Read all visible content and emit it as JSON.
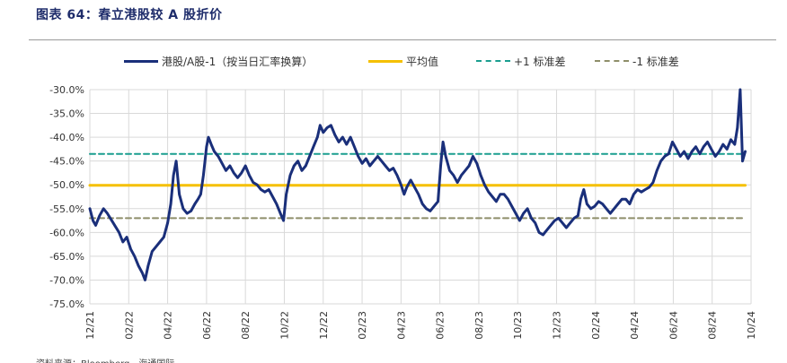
{
  "header": {
    "title": "图表 64：春立港股较 A 股折价"
  },
  "footer": {
    "source": "资料来源：Bloomberg，海通国际"
  },
  "chart_data": {
    "type": "line",
    "title": "",
    "xlabel": "",
    "ylabel": "",
    "ylim": [
      -75,
      -30
    ],
    "ytick_labels": [
      "-30.0%",
      "-35.0%",
      "-40.0%",
      "-45.0%",
      "-50.0%",
      "-55.0%",
      "-60.0%",
      "-65.0%",
      "-70.0%",
      "-75.0%"
    ],
    "ytick_values": [
      -30,
      -35,
      -40,
      -45,
      -50,
      -55,
      -60,
      -65,
      -70,
      -75
    ],
    "xtick_labels": [
      "12/21",
      "02/22",
      "04/22",
      "06/22",
      "08/22",
      "10/22",
      "12/22",
      "02/23",
      "04/23",
      "06/23",
      "08/23",
      "10/23",
      "12/23",
      "02/24",
      "04/24",
      "06/24",
      "08/24",
      "10/24"
    ],
    "grid": true,
    "legend_position": "top",
    "series": [
      {
        "name": "港股/A股-1（按当日汇率换算）",
        "color": "#1a2f7a",
        "style": "solid",
        "points": [
          [
            0,
            -55.0
          ],
          [
            0.08,
            -57.5
          ],
          [
            0.15,
            -58.5
          ],
          [
            0.25,
            -56.5
          ],
          [
            0.35,
            -55.0
          ],
          [
            0.45,
            -56.0
          ],
          [
            0.6,
            -58.0
          ],
          [
            0.75,
            -60.0
          ],
          [
            0.85,
            -62.0
          ],
          [
            0.95,
            -61.0
          ],
          [
            1.05,
            -63.5
          ],
          [
            1.15,
            -65.0
          ],
          [
            1.25,
            -67.0
          ],
          [
            1.35,
            -68.5
          ],
          [
            1.42,
            -70.0
          ],
          [
            1.5,
            -67.0
          ],
          [
            1.6,
            -64.0
          ],
          [
            1.7,
            -63.0
          ],
          [
            1.8,
            -62.0
          ],
          [
            1.9,
            -61.0
          ],
          [
            2.0,
            -58.0
          ],
          [
            2.08,
            -54.0
          ],
          [
            2.15,
            -48.0
          ],
          [
            2.22,
            -45.0
          ],
          [
            2.3,
            -52.0
          ],
          [
            2.4,
            -55.0
          ],
          [
            2.5,
            -56.0
          ],
          [
            2.6,
            -55.5
          ],
          [
            2.7,
            -54.0
          ],
          [
            2.78,
            -53.0
          ],
          [
            2.85,
            -52.0
          ],
          [
            2.92,
            -48.0
          ],
          [
            3.0,
            -42.0
          ],
          [
            3.05,
            -40.0
          ],
          [
            3.12,
            -41.5
          ],
          [
            3.2,
            -43.0
          ],
          [
            3.3,
            -44.0
          ],
          [
            3.4,
            -45.5
          ],
          [
            3.5,
            -47.0
          ],
          [
            3.6,
            -46.0
          ],
          [
            3.7,
            -47.5
          ],
          [
            3.8,
            -48.5
          ],
          [
            3.9,
            -47.5
          ],
          [
            4.0,
            -46.0
          ],
          [
            4.1,
            -48.0
          ],
          [
            4.2,
            -49.5
          ],
          [
            4.3,
            -50.0
          ],
          [
            4.4,
            -51.0
          ],
          [
            4.5,
            -51.5
          ],
          [
            4.6,
            -51.0
          ],
          [
            4.7,
            -52.5
          ],
          [
            4.8,
            -54.0
          ],
          [
            4.9,
            -56.0
          ],
          [
            4.98,
            -57.5
          ],
          [
            5.05,
            -52.0
          ],
          [
            5.15,
            -48.0
          ],
          [
            5.25,
            -46.0
          ],
          [
            5.35,
            -45.0
          ],
          [
            5.45,
            -47.0
          ],
          [
            5.55,
            -46.0
          ],
          [
            5.65,
            -44.0
          ],
          [
            5.75,
            -42.0
          ],
          [
            5.85,
            -40.0
          ],
          [
            5.92,
            -37.5
          ],
          [
            6.0,
            -39.0
          ],
          [
            6.1,
            -38.0
          ],
          [
            6.2,
            -37.5
          ],
          [
            6.3,
            -39.5
          ],
          [
            6.4,
            -41.0
          ],
          [
            6.5,
            -40.0
          ],
          [
            6.6,
            -41.5
          ],
          [
            6.7,
            -40.0
          ],
          [
            6.8,
            -42.0
          ],
          [
            6.9,
            -44.0
          ],
          [
            7.0,
            -45.5
          ],
          [
            7.1,
            -44.5
          ],
          [
            7.2,
            -46.0
          ],
          [
            7.3,
            -45.0
          ],
          [
            7.4,
            -44.0
          ],
          [
            7.5,
            -45.0
          ],
          [
            7.6,
            -46.0
          ],
          [
            7.7,
            -47.0
          ],
          [
            7.8,
            -46.5
          ],
          [
            7.9,
            -48.0
          ],
          [
            8.0,
            -50.0
          ],
          [
            8.08,
            -52.0
          ],
          [
            8.15,
            -50.5
          ],
          [
            8.25,
            -49.0
          ],
          [
            8.35,
            -50.5
          ],
          [
            8.45,
            -52.0
          ],
          [
            8.55,
            -54.0
          ],
          [
            8.65,
            -55.0
          ],
          [
            8.75,
            -55.5
          ],
          [
            8.85,
            -54.5
          ],
          [
            8.95,
            -53.5
          ],
          [
            9.02,
            -46.0
          ],
          [
            9.08,
            -41.0
          ],
          [
            9.15,
            -44.0
          ],
          [
            9.25,
            -47.0
          ],
          [
            9.35,
            -48.0
          ],
          [
            9.45,
            -49.5
          ],
          [
            9.55,
            -48.0
          ],
          [
            9.65,
            -47.0
          ],
          [
            9.75,
            -46.0
          ],
          [
            9.85,
            -44.0
          ],
          [
            9.95,
            -45.5
          ],
          [
            10.05,
            -48.0
          ],
          [
            10.15,
            -50.0
          ],
          [
            10.25,
            -51.5
          ],
          [
            10.35,
            -52.5
          ],
          [
            10.45,
            -53.5
          ],
          [
            10.55,
            -52.0
          ],
          [
            10.65,
            -52.0
          ],
          [
            10.75,
            -53.0
          ],
          [
            10.85,
            -54.5
          ],
          [
            10.95,
            -56.0
          ],
          [
            11.05,
            -57.5
          ],
          [
            11.15,
            -56.0
          ],
          [
            11.25,
            -55.0
          ],
          [
            11.35,
            -57.0
          ],
          [
            11.45,
            -58.0
          ],
          [
            11.55,
            -60.0
          ],
          [
            11.65,
            -60.5
          ],
          [
            11.75,
            -59.5
          ],
          [
            11.85,
            -58.5
          ],
          [
            11.95,
            -57.5
          ],
          [
            12.05,
            -57.0
          ],
          [
            12.15,
            -58.0
          ],
          [
            12.25,
            -59.0
          ],
          [
            12.35,
            -58.0
          ],
          [
            12.45,
            -57.0
          ],
          [
            12.55,
            -56.5
          ],
          [
            12.62,
            -53.0
          ],
          [
            12.7,
            -51.0
          ],
          [
            12.78,
            -54.0
          ],
          [
            12.88,
            -55.0
          ],
          [
            12.98,
            -54.5
          ],
          [
            13.08,
            -53.5
          ],
          [
            13.18,
            -54.0
          ],
          [
            13.28,
            -55.0
          ],
          [
            13.38,
            -56.0
          ],
          [
            13.48,
            -55.0
          ],
          [
            13.58,
            -54.0
          ],
          [
            13.68,
            -53.0
          ],
          [
            13.78,
            -53.0
          ],
          [
            13.88,
            -54.0
          ],
          [
            13.98,
            -52.0
          ],
          [
            14.08,
            -51.0
          ],
          [
            14.18,
            -51.5
          ],
          [
            14.28,
            -51.0
          ],
          [
            14.38,
            -50.5
          ],
          [
            14.48,
            -49.5
          ],
          [
            14.58,
            -47.0
          ],
          [
            14.68,
            -45.0
          ],
          [
            14.78,
            -44.0
          ],
          [
            14.88,
            -43.5
          ],
          [
            14.98,
            -41.0
          ],
          [
            15.08,
            -42.5
          ],
          [
            15.18,
            -44.0
          ],
          [
            15.28,
            -43.0
          ],
          [
            15.38,
            -44.5
          ],
          [
            15.48,
            -43.0
          ],
          [
            15.58,
            -42.0
          ],
          [
            15.68,
            -43.5
          ],
          [
            15.78,
            -42.0
          ],
          [
            15.88,
            -41.0
          ],
          [
            15.98,
            -42.5
          ],
          [
            16.08,
            -44.0
          ],
          [
            16.18,
            -43.0
          ],
          [
            16.28,
            -41.5
          ],
          [
            16.38,
            -42.5
          ],
          [
            16.48,
            -40.5
          ],
          [
            16.58,
            -41.5
          ],
          [
            16.65,
            -38.0
          ],
          [
            16.72,
            -30.0
          ],
          [
            16.78,
            -45.0
          ],
          [
            16.85,
            -43.0
          ]
        ]
      },
      {
        "name": "平均值",
        "color": "#f5c000",
        "style": "solid",
        "points": [
          [
            0,
            -50.1
          ],
          [
            16.85,
            -50.1
          ]
        ]
      },
      {
        "name": "+1 标准差",
        "color": "#1a9e8f",
        "style": "dashed",
        "points": [
          [
            0,
            -43.5
          ],
          [
            16.85,
            -43.5
          ]
        ]
      },
      {
        "name": "-1 标准差",
        "color": "#8e8e6a",
        "style": "dashed",
        "points": [
          [
            0,
            -57.0
          ],
          [
            16.85,
            -57.0
          ]
        ]
      }
    ]
  }
}
